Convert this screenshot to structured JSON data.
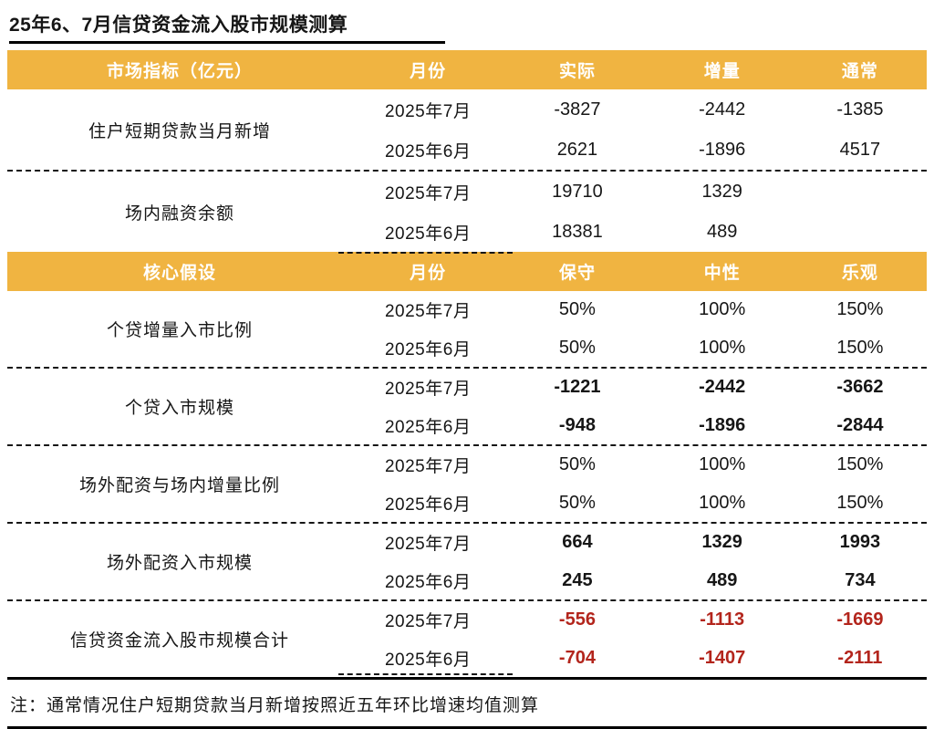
{
  "title": "25年6、7月信贷资金流入股市规模测算",
  "note": "注：通常情况住户短期贷款当月新增按照近五年环比增速均值测算",
  "colors": {
    "header_bg": "#F0B441",
    "header_text": "#FFFFFF",
    "total_red": "#B3251C",
    "body_text": "#161616"
  },
  "table1": {
    "headers": [
      "市场指标（亿元）",
      "月份",
      "实际",
      "增量",
      "通常"
    ],
    "groups": [
      {
        "indicator": "住户短期贷款当月新增",
        "rows": [
          {
            "month": "2025年7月",
            "values": [
              "-3827",
              "-2442",
              "-1385"
            ]
          },
          {
            "month": "2025年6月",
            "values": [
              "2621",
              "-1896",
              "4517"
            ]
          }
        ]
      },
      {
        "indicator": "场内融资余额",
        "rows": [
          {
            "month": "2025年7月",
            "values": [
              "19710",
              "1329",
              ""
            ]
          },
          {
            "month": "2025年6月",
            "values": [
              "18381",
              "489",
              ""
            ]
          }
        ]
      }
    ]
  },
  "table2": {
    "headers": [
      "核心假设",
      "月份",
      "保守",
      "中性",
      "乐观"
    ],
    "groups": [
      {
        "indicator": "个贷增量入市比例",
        "rows": [
          {
            "month": "2025年7月",
            "values": [
              "50%",
              "100%",
              "150%"
            ]
          },
          {
            "month": "2025年6月",
            "values": [
              "50%",
              "100%",
              "150%"
            ]
          }
        ]
      },
      {
        "indicator": "个贷入市规模",
        "rows": [
          {
            "month": "2025年7月",
            "values": [
              "-1221",
              "-2442",
              "-3662"
            ]
          },
          {
            "month": "2025年6月",
            "values": [
              "-948",
              "-1896",
              "-2844"
            ]
          }
        ]
      },
      {
        "indicator": "场外配资与场内增量比例",
        "rows": [
          {
            "month": "2025年7月",
            "values": [
              "50%",
              "100%",
              "150%"
            ]
          },
          {
            "month": "2025年6月",
            "values": [
              "50%",
              "100%",
              "150%"
            ]
          }
        ]
      },
      {
        "indicator": "场外配资入市规模",
        "rows": [
          {
            "month": "2025年7月",
            "values": [
              "664",
              "1329",
              "1993"
            ]
          },
          {
            "month": "2025年6月",
            "values": [
              "245",
              "489",
              "734"
            ]
          }
        ]
      },
      {
        "indicator": "信贷资金流入股市规模合计",
        "rows": [
          {
            "month": "2025年7月",
            "values": [
              "-556",
              "-1113",
              "-1669"
            ]
          },
          {
            "month": "2025年6月",
            "values": [
              "-704",
              "-1407",
              "-2111"
            ]
          }
        ]
      }
    ]
  }
}
